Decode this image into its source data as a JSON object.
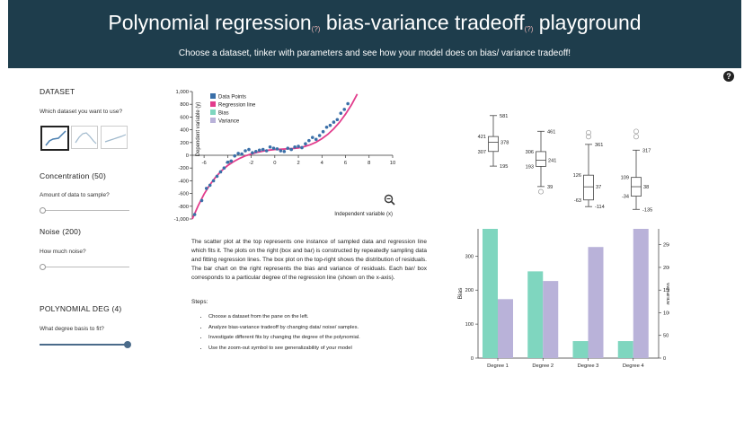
{
  "header": {
    "title_part1": "Polynomial regression",
    "title_part2": " bias-variance tradeoff",
    "title_part3": " playground",
    "title_marker": "(?)",
    "subtitle": "Choose a dataset, tinker with parameters and see how your model does on bias/ variance tradeoff!"
  },
  "help_icon": "?",
  "sidebar": {
    "dataset_heading": "DATASET",
    "dataset_question": "Which dataset you want to use?",
    "selected_dataset": 0,
    "concentration_label": "Concentration (50)",
    "concentration_question": "Amount of data to sample?",
    "concentration_value": 0,
    "noise_label": "Noise (200)",
    "noise_question": "How much noise?",
    "noise_value": 0,
    "degree_label": "POLYNOMIAL DEG (4)",
    "degree_question": "What degree basis to fit?",
    "degree_value": 1.0
  },
  "description": "The scatter plot at the top represents one instance of sampled data and regression line which fits it. The plots on the right (box and bar) is constructed by repeatedly sampling data and fitting regression lines. The box plot on the top-right shows the distribution of residuals. The bar chart on the right represents the bias and variance of residuals. Each bar/ box corresponds to a particular degree of the regression line (shown on the x-axis).",
  "steps_title": "Steps:",
  "steps": [
    "Choose a dataset from the pane on the left.",
    "Analyze bias-variance tradeoff by changing data/ noise/ samples.",
    "Investigate different fits by changing the degree of the polynomial.",
    "Use the zoom-out symbol to see generalizability of your model"
  ],
  "colors": {
    "header_bg": "#1e3d4c",
    "data_points": "#3a6fa8",
    "regression_line": "#e23c8c",
    "bias": "#7fd6bf",
    "variance": "#b9b2d9"
  },
  "chart_data": [
    {
      "type": "scatter",
      "xlabel": "Independent variable (x)",
      "ylabel": "Dependent variable (y)",
      "xlim": [
        -7,
        10
      ],
      "ylim": [
        -1000,
        1000
      ],
      "x_ticks": [
        "-6",
        "-4",
        "-2",
        "0",
        "2",
        "4",
        "6",
        "8",
        "10"
      ],
      "y_ticks": [
        "1,000",
        "800",
        "600",
        "400",
        "200",
        "0",
        "-200",
        "-400",
        "-600",
        "-800",
        "-1,000"
      ],
      "legend": [
        "Data Points",
        "Regression line",
        "Bias",
        "Variance"
      ],
      "legend_position": "top-left",
      "series": [
        {
          "name": "Data Points",
          "x": [
            -6.8,
            -6.2,
            -5.8,
            -5.5,
            -5.2,
            -4.9,
            -4.6,
            -4.3,
            -4.0,
            -3.7,
            -3.4,
            -3.1,
            -2.8,
            -2.5,
            -2.2,
            -1.9,
            -1.6,
            -1.3,
            -1.0,
            -0.7,
            -0.4,
            -0.1,
            0.2,
            0.5,
            0.8,
            1.1,
            1.4,
            1.7,
            2.0,
            2.3,
            2.6,
            2.9,
            3.2,
            3.5,
            3.8,
            4.1,
            4.4,
            4.7,
            5.0,
            5.3,
            5.6,
            5.9,
            6.2
          ],
          "y": [
            -930,
            -710,
            -520,
            -470,
            -400,
            -330,
            -260,
            -200,
            -110,
            -90,
            -10,
            30,
            20,
            70,
            90,
            40,
            60,
            80,
            90,
            70,
            130,
            110,
            100,
            70,
            60,
            110,
            90,
            130,
            140,
            120,
            180,
            230,
            280,
            250,
            310,
            370,
            440,
            470,
            520,
            560,
            660,
            720,
            810
          ]
        },
        {
          "name": "Regression line",
          "x": [
            -7,
            -6.5,
            -6,
            -5.5,
            -5,
            -4.5,
            -4,
            -3.5,
            -3,
            -2.5,
            -2,
            -1.5,
            -1,
            -0.5,
            0,
            0.5,
            1,
            1.5,
            2,
            2.5,
            3,
            3.5,
            4,
            4.5,
            5,
            5.5,
            6,
            6.5,
            7
          ],
          "y": [
            -1000,
            -790,
            -610,
            -460,
            -340,
            -240,
            -160,
            -100,
            -50,
            -10,
            20,
            45,
            65,
            80,
            90,
            95,
            100,
            105,
            115,
            135,
            165,
            205,
            260,
            330,
            415,
            520,
            645,
            790,
            960
          ]
        }
      ]
    },
    {
      "type": "box",
      "categories": [
        "Degree 1",
        "Degree 2",
        "Degree 3",
        "Degree 4"
      ],
      "boxes": [
        {
          "whisker_high": 581,
          "q3": 421,
          "median": 378,
          "q1": 307,
          "whisker_low": 195,
          "outliers": []
        },
        {
          "whisker_high": 461,
          "q3": 306,
          "median": 241,
          "q1": 193,
          "whisker_low": 39,
          "outliers": [
            0
          ]
        },
        {
          "whisker_high": 361,
          "q3": 126,
          "median": 37,
          "q1": -63,
          "whisker_low": -114,
          "outliers": [
            420,
            450
          ]
        },
        {
          "whisker_high": 317,
          "q3": 109,
          "median": 38,
          "q1": -34,
          "whisker_low": -135,
          "outliers": [
            420,
            460
          ]
        }
      ]
    },
    {
      "type": "bar",
      "categories": [
        "Degree 1",
        "Degree 2",
        "Degree 3",
        "Degree 4"
      ],
      "ylabel": "Bias",
      "y2label": "Variance",
      "ylim": [
        0,
        380
      ],
      "y2lim": [
        0,
        285
      ],
      "y_ticks": [
        "0",
        "100",
        "200",
        "300"
      ],
      "y2_ticks": [
        "0",
        "50",
        "100",
        "150",
        "200",
        "250"
      ],
      "series": [
        {
          "name": "Bias",
          "values": [
            380,
            255,
            50,
            50
          ],
          "axis": "left"
        },
        {
          "name": "Variance",
          "values": [
            130,
            170,
            245,
            285
          ],
          "axis": "right"
        }
      ]
    }
  ]
}
